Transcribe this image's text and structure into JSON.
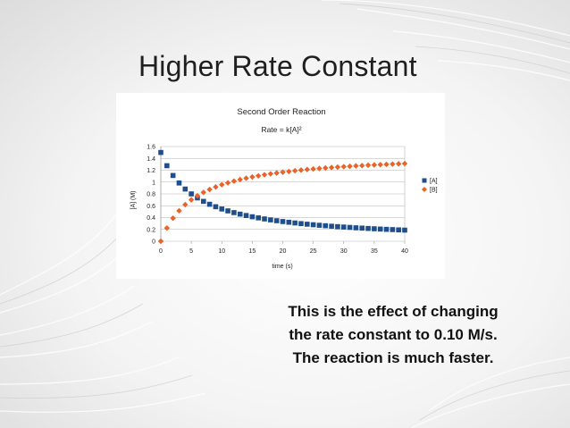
{
  "slide": {
    "title": "Higher Rate Constant",
    "body_lines": [
      "This is the effect of changing",
      "the rate constant to 0.10 M/s.",
      "The reaction is much faster."
    ]
  },
  "chart_data": {
    "type": "scatter",
    "title": "Second Order Reaction",
    "subtitle": "Rate = k[A]²",
    "xlabel": "time (s)",
    "ylabel": "[A] (M)",
    "xlim": [
      0,
      40
    ],
    "ylim": [
      0,
      1.6
    ],
    "x_ticks": [
      "0",
      "5",
      "10",
      "15",
      "20",
      "25",
      "30",
      "35",
      "40"
    ],
    "y_ticks": [
      "0",
      "0.2",
      "0.4",
      "0.6",
      "0.8",
      "1",
      "1.2",
      "1.4",
      "1.6"
    ],
    "grid": "horizontal",
    "legend_position": "right",
    "series": [
      {
        "name": "[A]",
        "color": "#1f4e8c",
        "marker": "square",
        "x": [
          0,
          1,
          2,
          3,
          4,
          5,
          6,
          7,
          8,
          9,
          10,
          11,
          12,
          13,
          14,
          15,
          16,
          17,
          18,
          19,
          20,
          21,
          22,
          23,
          24,
          25,
          26,
          27,
          28,
          29,
          30,
          31,
          32,
          33,
          34,
          35,
          36,
          37,
          38,
          39,
          40
        ],
        "values": [
          1.5,
          1.276,
          1.111,
          0.984,
          0.882,
          0.8,
          0.732,
          0.674,
          0.625,
          0.583,
          0.545,
          0.513,
          0.484,
          0.458,
          0.435,
          0.414,
          0.395,
          0.377,
          0.361,
          0.347,
          0.333,
          0.321,
          0.309,
          0.298,
          0.288,
          0.279,
          0.27,
          0.262,
          0.254,
          0.247,
          0.24,
          0.234,
          0.227,
          0.222,
          0.216,
          0.211,
          0.206,
          0.201,
          0.197,
          0.192,
          0.188
        ]
      },
      {
        "name": "[B]",
        "color": "#e8642a",
        "marker": "diamond",
        "x": [
          0,
          1,
          2,
          3,
          4,
          5,
          6,
          7,
          8,
          9,
          10,
          11,
          12,
          13,
          14,
          15,
          16,
          17,
          18,
          19,
          20,
          21,
          22,
          23,
          24,
          25,
          26,
          27,
          28,
          29,
          30,
          31,
          32,
          33,
          34,
          35,
          36,
          37,
          38,
          39,
          40
        ],
        "values": [
          0,
          0.224,
          0.389,
          0.516,
          0.618,
          0.7,
          0.768,
          0.826,
          0.875,
          0.917,
          0.955,
          0.987,
          1.016,
          1.042,
          1.065,
          1.086,
          1.105,
          1.123,
          1.139,
          1.153,
          1.167,
          1.179,
          1.191,
          1.202,
          1.212,
          1.221,
          1.23,
          1.238,
          1.246,
          1.253,
          1.26,
          1.266,
          1.273,
          1.278,
          1.284,
          1.289,
          1.294,
          1.299,
          1.303,
          1.308,
          1.312
        ]
      }
    ]
  }
}
